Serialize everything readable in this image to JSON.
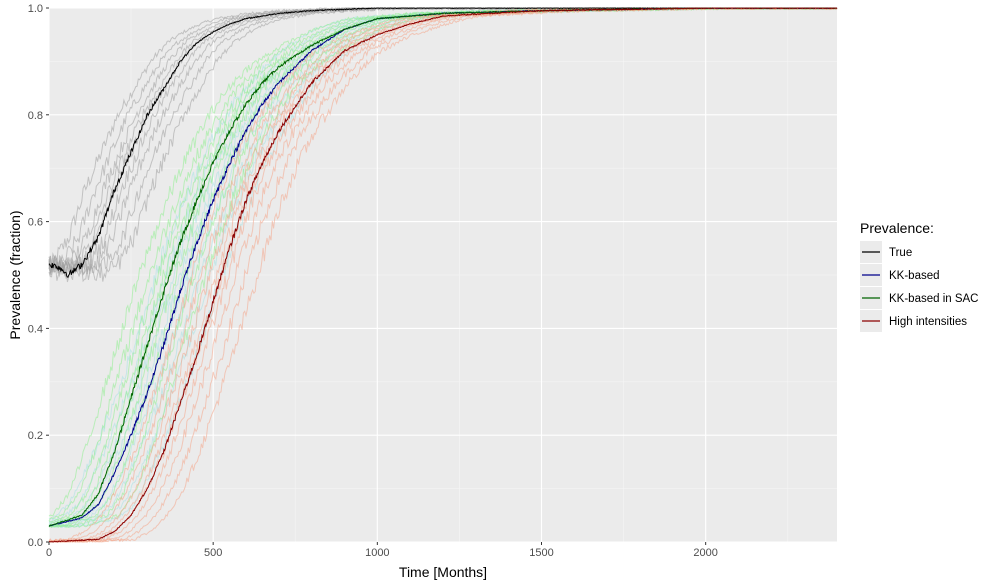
{
  "chart_data": {
    "type": "line",
    "xlabel": "Time [Months]",
    "ylabel": "Prevalence (fraction)",
    "xlim": [
      0,
      2400
    ],
    "ylim": [
      0,
      1
    ],
    "x_ticks": [
      0,
      500,
      1000,
      1500,
      2000
    ],
    "y_ticks": [
      0.0,
      0.2,
      0.4,
      0.6,
      0.8,
      1.0
    ],
    "y_tick_labels": [
      "0.0",
      "0.2",
      "0.4",
      "0.6",
      "0.8",
      "1.0"
    ],
    "grid": true,
    "legend": {
      "title": "Prevalence:",
      "placement": "right",
      "entries": [
        "True",
        "KK-based",
        "KK-based in SAC",
        "High intensities"
      ]
    },
    "series": [
      {
        "name": "True",
        "color": "#000000",
        "x": [
          0,
          30,
          60,
          100,
          150,
          200,
          250,
          300,
          350,
          400,
          450,
          500,
          550,
          600,
          700,
          800,
          1000,
          1200,
          1500,
          2000,
          2400
        ],
        "y": [
          0.52,
          0.515,
          0.5,
          0.52,
          0.57,
          0.66,
          0.73,
          0.8,
          0.85,
          0.9,
          0.935,
          0.955,
          0.97,
          0.98,
          0.99,
          0.995,
          1.0,
          1.0,
          1.0,
          1.0,
          1.0
        ]
      },
      {
        "name": "KK-based",
        "color": "#00008b",
        "x": [
          0,
          100,
          150,
          200,
          250,
          300,
          350,
          400,
          450,
          500,
          550,
          600,
          650,
          700,
          800,
          900,
          1000,
          1200,
          1500,
          2000,
          2400
        ],
        "y": [
          0.03,
          0.045,
          0.07,
          0.13,
          0.2,
          0.28,
          0.37,
          0.47,
          0.56,
          0.64,
          0.71,
          0.77,
          0.82,
          0.86,
          0.92,
          0.96,
          0.98,
          0.99,
          0.995,
          1.0,
          1.0
        ]
      },
      {
        "name": "KK-based in SAC",
        "color": "#006400",
        "x": [
          0,
          100,
          150,
          200,
          250,
          300,
          350,
          400,
          450,
          500,
          550,
          600,
          650,
          700,
          800,
          900,
          1000,
          1200,
          1500,
          2000,
          2400
        ],
        "y": [
          0.03,
          0.05,
          0.09,
          0.17,
          0.27,
          0.37,
          0.47,
          0.56,
          0.64,
          0.71,
          0.77,
          0.82,
          0.86,
          0.89,
          0.93,
          0.96,
          0.98,
          0.99,
          0.995,
          1.0,
          1.0
        ]
      },
      {
        "name": "High intensities",
        "color": "#8b0000",
        "x": [
          0,
          150,
          200,
          250,
          300,
          350,
          400,
          450,
          500,
          550,
          600,
          650,
          700,
          800,
          900,
          1000,
          1100,
          1200,
          1500,
          2000,
          2400
        ],
        "y": [
          0.0,
          0.005,
          0.02,
          0.05,
          0.1,
          0.17,
          0.26,
          0.35,
          0.45,
          0.55,
          0.64,
          0.71,
          0.77,
          0.86,
          0.92,
          0.95,
          0.97,
          0.985,
          0.995,
          1.0,
          1.0
        ]
      }
    ],
    "replicate_bands": [
      {
        "group": "True",
        "color": "#9e9e9e"
      },
      {
        "group": "KK-based",
        "color": "#a8e2e4"
      },
      {
        "group": "KK-based in SAC",
        "color": "#90ee90"
      },
      {
        "group": "High intensities",
        "color": "#f4a58a"
      }
    ]
  }
}
